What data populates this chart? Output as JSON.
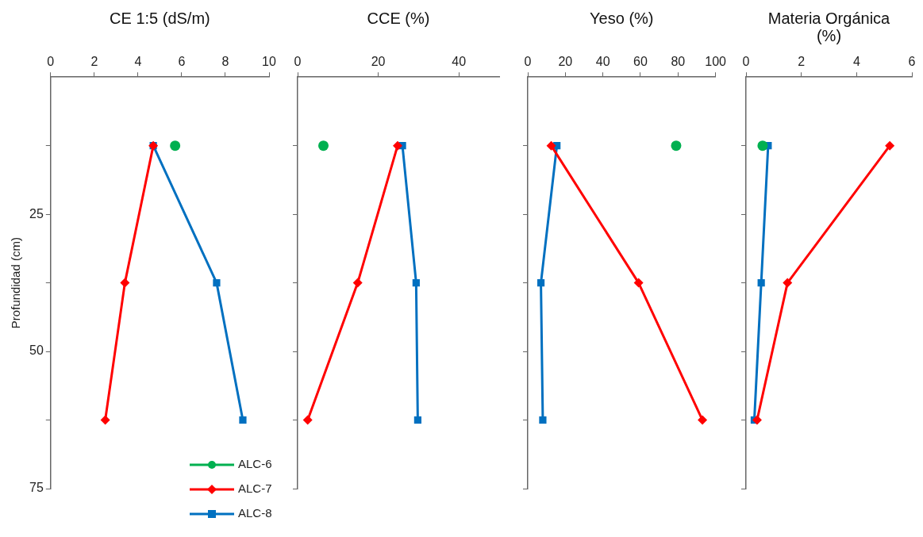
{
  "chart_data": [
    {
      "type": "line",
      "title": "CE 1:5 (dS/m)",
      "ylabel": "Profundidad (cm)",
      "xlim": [
        0,
        10
      ],
      "xticks": [
        0,
        2,
        4,
        6,
        8,
        10
      ],
      "ylim": [
        75,
        0
      ],
      "yticks": [
        {
          "value": 12.5,
          "label": null
        },
        25,
        {
          "value": 37.5,
          "label": null
        },
        50,
        {
          "value": 62.5,
          "label": null
        },
        75
      ],
      "grid": false,
      "legend": "bottom right",
      "series": [
        {
          "name": "ALC-6",
          "color": "#00b050",
          "marker": "circle",
          "x": [
            5.7
          ],
          "values": [
            12.5
          ]
        },
        {
          "name": "ALC-7",
          "color": "#ff0000",
          "marker": "diamond",
          "x": [
            4.7,
            3.4,
            2.5
          ],
          "values": [
            12.5,
            37.5,
            62.5
          ]
        },
        {
          "name": "ALC-8",
          "color": "#0070c0",
          "marker": "square",
          "x": [
            4.7,
            7.6,
            8.8
          ],
          "values": [
            12.5,
            37.5,
            62.5
          ]
        }
      ]
    },
    {
      "type": "line",
      "title": "CCE (%)",
      "xlim": [
        0,
        50
      ],
      "xticks": [
        0,
        20,
        40
      ],
      "ylim": [
        75,
        0
      ],
      "yticks": [
        {
          "value": 12.5,
          "label": null
        },
        {
          "value": 25,
          "label": null
        },
        {
          "value": 37.5,
          "label": null
        },
        {
          "value": 50,
          "label": null
        },
        {
          "value": 62.5,
          "label": null
        },
        {
          "value": 75,
          "label": null
        }
      ],
      "tick_labels": "x",
      "grid": false,
      "series": [
        {
          "color": "#00b050",
          "marker": "circle",
          "x": [
            6.4
          ],
          "values": [
            12.5
          ]
        },
        {
          "color": "#ff0000",
          "marker": "diamond",
          "x": [
            24.8,
            14.9,
            2.5
          ],
          "values": [
            12.5,
            37.5,
            62.5
          ]
        },
        {
          "color": "#0070c0",
          "marker": "square",
          "x": [
            26,
            29.4,
            29.8
          ],
          "values": [
            12.5,
            37.5,
            62.5
          ]
        }
      ]
    },
    {
      "type": "line",
      "title": "Yeso (%)",
      "xlim": [
        0,
        100
      ],
      "xticks": [
        0,
        20,
        40,
        60,
        80,
        100
      ],
      "ylim": [
        75,
        0
      ],
      "yticks": [
        {
          "value": 12.5,
          "label": null
        },
        {
          "value": 25,
          "label": null
        },
        {
          "value": 37.5,
          "label": null
        },
        {
          "value": 50,
          "label": null
        },
        {
          "value": 62.5,
          "label": null
        },
        {
          "value": 75,
          "label": null
        }
      ],
      "tick_labels": "x",
      "grid": false,
      "series": [
        {
          "color": "#00b050",
          "marker": "circle",
          "x": [
            79
          ],
          "values": [
            12.5
          ]
        },
        {
          "color": "#ff0000",
          "marker": "diamond",
          "x": [
            12.5,
            59,
            93
          ],
          "values": [
            12.5,
            37.5,
            62.5
          ]
        },
        {
          "color": "#0070c0",
          "marker": "square",
          "x": [
            15.5,
            7,
            8
          ],
          "values": [
            12.5,
            37.5,
            62.5
          ]
        }
      ]
    },
    {
      "type": "line",
      "title": "Materia Orgánica (%)",
      "xlim": [
        0,
        6
      ],
      "xticks": [
        0,
        2,
        4,
        6
      ],
      "ylim": [
        75,
        0
      ],
      "yticks": [
        {
          "value": 12.5,
          "label": null
        },
        {
          "value": 25,
          "label": null
        },
        {
          "value": 37.5,
          "label": null
        },
        {
          "value": 50,
          "label": null
        },
        {
          "value": 62.5,
          "label": null
        },
        {
          "value": 75,
          "label": null
        }
      ],
      "tick_labels": "x",
      "grid": false,
      "series": [
        {
          "color": "#00b050",
          "marker": "circle",
          "x": [
            0.6
          ],
          "values": [
            12.5
          ]
        },
        {
          "color": "#ff0000",
          "marker": "diamond",
          "x": [
            5.2,
            1.5,
            0.4
          ],
          "values": [
            12.5,
            37.5,
            62.5
          ]
        },
        {
          "color": "#0070c0",
          "marker": "square",
          "x": [
            0.8,
            0.55,
            0.3
          ],
          "values": [
            12.5,
            37.5,
            62.5
          ]
        }
      ]
    }
  ]
}
